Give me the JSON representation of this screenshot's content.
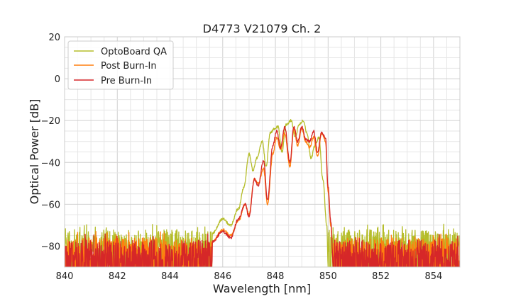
{
  "chart_data": {
    "type": "line",
    "title": "D4773 V21079 Ch. 2",
    "xlabel": "Wavelength [nm]",
    "ylabel": "Optical Power [dB]",
    "xlim": [
      840,
      855
    ],
    "ylim": [
      -90,
      20
    ],
    "x_ticks": [
      840,
      842,
      844,
      846,
      848,
      850,
      852,
      854
    ],
    "x_tick_labels": [
      "840",
      "842",
      "844",
      "846",
      "848",
      "850",
      "852",
      "854"
    ],
    "y_ticks": [
      20,
      0,
      -20,
      -40,
      -60,
      -80
    ],
    "y_tick_labels": [
      "20",
      "0",
      "−20",
      "−40",
      "−60",
      "−80"
    ],
    "grid": true,
    "legend_position": "top-left",
    "series": [
      {
        "name": "OptoBoard QA",
        "color": "#b5bd2a",
        "envelope": [
          [
            845.6,
            -74
          ],
          [
            846.0,
            -67
          ],
          [
            846.3,
            -70
          ],
          [
            846.6,
            -62
          ],
          [
            846.8,
            -52
          ],
          [
            847.0,
            -36
          ],
          [
            847.15,
            -44
          ],
          [
            847.3,
            -38
          ],
          [
            847.5,
            -30
          ],
          [
            847.65,
            -42
          ],
          [
            847.8,
            -26
          ],
          [
            847.95,
            -24
          ],
          [
            848.1,
            -23
          ],
          [
            848.25,
            -35
          ],
          [
            848.4,
            -22
          ],
          [
            848.6,
            -20
          ],
          [
            848.75,
            -28
          ],
          [
            848.9,
            -22
          ],
          [
            849.05,
            -20
          ],
          [
            849.2,
            -26
          ],
          [
            849.35,
            -38
          ],
          [
            849.5,
            -32
          ],
          [
            849.65,
            -28
          ],
          [
            849.8,
            -48
          ],
          [
            849.95,
            -70
          ],
          [
            850.0,
            -90
          ]
        ],
        "noise_floor": -72
      },
      {
        "name": "Post Burn-In",
        "color": "#ff7f0e",
        "envelope": [
          [
            845.6,
            -78
          ],
          [
            846.0,
            -72
          ],
          [
            846.3,
            -75
          ],
          [
            846.6,
            -68
          ],
          [
            846.85,
            -60
          ],
          [
            847.0,
            -65
          ],
          [
            847.2,
            -48
          ],
          [
            847.35,
            -50
          ],
          [
            847.55,
            -43
          ],
          [
            847.7,
            -60
          ],
          [
            847.9,
            -36
          ],
          [
            848.05,
            -28
          ],
          [
            848.2,
            -34
          ],
          [
            848.35,
            -26
          ],
          [
            848.55,
            -42
          ],
          [
            848.7,
            -24
          ],
          [
            848.85,
            -32
          ],
          [
            849.0,
            -24
          ],
          [
            849.15,
            -30
          ],
          [
            849.3,
            -33
          ],
          [
            849.45,
            -28
          ],
          [
            849.6,
            -37
          ],
          [
            849.75,
            -26
          ],
          [
            849.9,
            -30
          ],
          [
            850.0,
            -54
          ],
          [
            850.1,
            -70
          ],
          [
            850.2,
            -90
          ]
        ],
        "noise_floor": -76
      },
      {
        "name": "Pre Burn-In",
        "color": "#d62728",
        "envelope": [
          [
            845.6,
            -78
          ],
          [
            846.0,
            -73
          ],
          [
            846.3,
            -76
          ],
          [
            846.6,
            -67
          ],
          [
            846.85,
            -60
          ],
          [
            847.0,
            -66
          ],
          [
            847.2,
            -48
          ],
          [
            847.35,
            -51
          ],
          [
            847.55,
            -39
          ],
          [
            847.7,
            -58
          ],
          [
            847.9,
            -32
          ],
          [
            848.05,
            -25
          ],
          [
            848.2,
            -33
          ],
          [
            848.35,
            -23
          ],
          [
            848.55,
            -40
          ],
          [
            848.7,
            -23
          ],
          [
            848.85,
            -30
          ],
          [
            849.0,
            -23
          ],
          [
            849.15,
            -29
          ],
          [
            849.3,
            -30
          ],
          [
            849.45,
            -25
          ],
          [
            849.6,
            -35
          ],
          [
            849.75,
            -26
          ],
          [
            849.9,
            -28
          ],
          [
            850.0,
            -52
          ],
          [
            850.1,
            -68
          ],
          [
            850.2,
            -90
          ]
        ],
        "noise_floor": -77
      }
    ]
  }
}
